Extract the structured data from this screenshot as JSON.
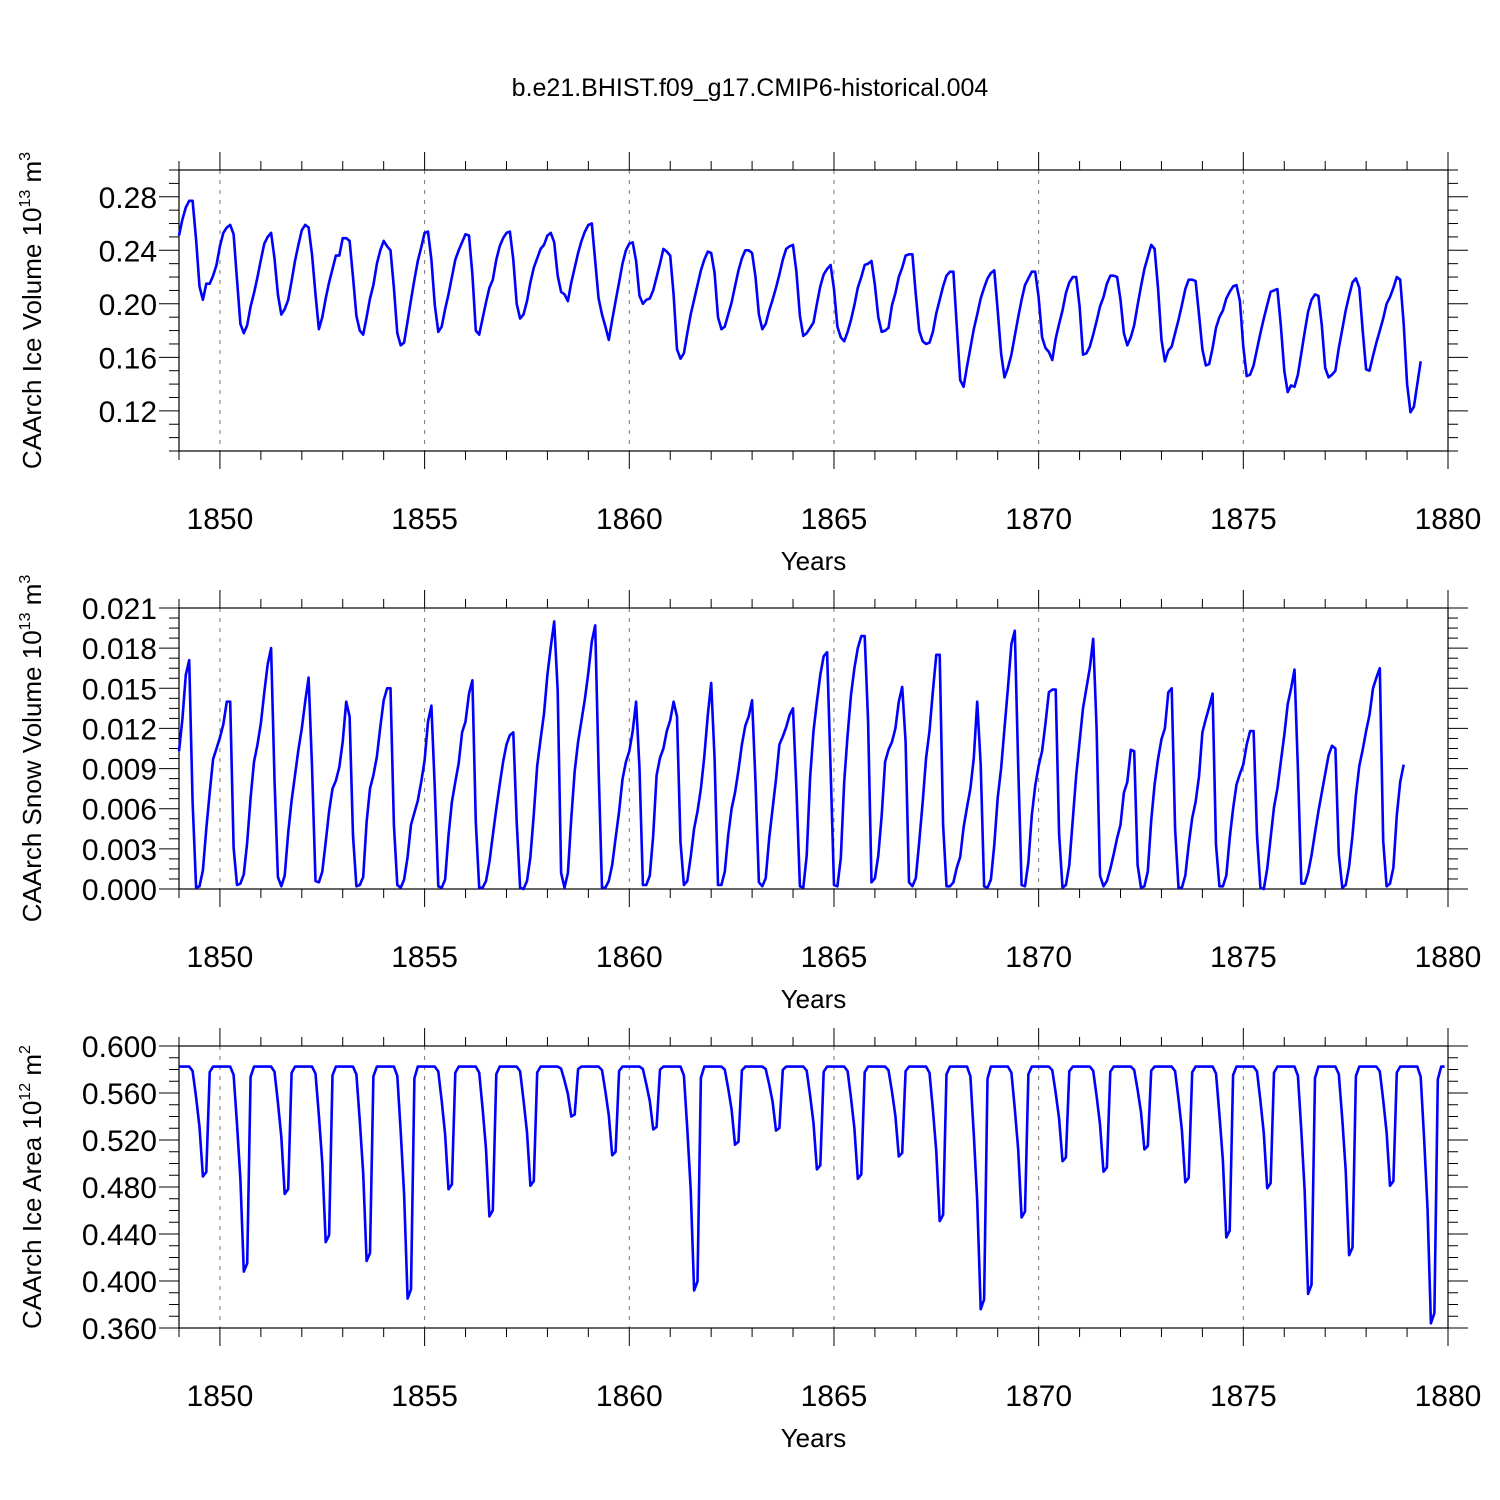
{
  "figure_title": "b.e21.BHIST.f09_g17.CMIP6-historical.004",
  "chart_data": [
    {
      "type": "line",
      "id": "ice-volume",
      "ylabel": "CAArch Ice Volume 10",
      "ylabel_exp": "13",
      "ylabel_unit": " m",
      "ylabel_unit_exp": "3",
      "xlabel": "Years",
      "xlim": [
        1849,
        1880
      ],
      "ylim": [
        0.09,
        0.3
      ],
      "yticks": [
        0.12,
        0.16,
        0.2,
        0.24,
        0.28
      ],
      "ytick_labels": [
        "0.12",
        "0.16",
        "0.20",
        "0.24",
        "0.28"
      ],
      "xticks": [
        1850,
        1855,
        1860,
        1865,
        1870,
        1875,
        1880
      ],
      "xtick_labels": [
        "1850",
        "1855",
        "1860",
        "1865",
        "1870",
        "1875",
        "1880"
      ],
      "series": [
        {
          "name": "CAArch Ice Volume",
          "color": "#0000ff",
          "monthly_values": [
            0.251,
            0.263,
            0.272,
            0.277,
            0.277,
            0.248,
            0.213,
            0.203,
            0.215,
            0.215,
            0.221,
            0.229,
            0.243,
            0.253,
            0.257,
            0.259,
            0.252,
            0.218,
            0.185,
            0.178,
            0.184,
            0.198,
            0.208,
            0.22,
            0.233,
            0.245,
            0.25,
            0.253,
            0.234,
            0.207,
            0.192,
            0.196,
            0.203,
            0.217,
            0.232,
            0.244,
            0.255,
            0.259,
            0.257,
            0.237,
            0.207,
            0.181,
            0.19,
            0.204,
            0.216,
            0.226,
            0.236,
            0.236,
            0.249,
            0.249,
            0.247,
            0.22,
            0.191,
            0.18,
            0.177,
            0.19,
            0.204,
            0.214,
            0.23,
            0.24,
            0.247,
            0.243,
            0.24,
            0.212,
            0.178,
            0.169,
            0.171,
            0.187,
            0.203,
            0.218,
            0.232,
            0.242,
            0.253,
            0.254,
            0.233,
            0.199,
            0.179,
            0.183,
            0.196,
            0.207,
            0.22,
            0.233,
            0.24,
            0.246,
            0.252,
            0.251,
            0.222,
            0.18,
            0.177,
            0.189,
            0.201,
            0.212,
            0.218,
            0.233,
            0.243,
            0.249,
            0.253,
            0.254,
            0.233,
            0.2,
            0.189,
            0.192,
            0.202,
            0.216,
            0.227,
            0.234,
            0.241,
            0.244,
            0.251,
            0.253,
            0.246,
            0.221,
            0.209,
            0.207,
            0.202,
            0.216,
            0.227,
            0.238,
            0.247,
            0.254,
            0.259,
            0.26,
            0.232,
            0.204,
            0.192,
            0.183,
            0.173,
            0.188,
            0.202,
            0.216,
            0.23,
            0.24,
            0.245,
            0.246,
            0.232,
            0.206,
            0.2,
            0.203,
            0.204,
            0.21,
            0.22,
            0.23,
            0.241,
            0.239,
            0.236,
            0.207,
            0.166,
            0.159,
            0.163,
            0.178,
            0.192,
            0.203,
            0.214,
            0.225,
            0.233,
            0.239,
            0.238,
            0.223,
            0.19,
            0.181,
            0.183,
            0.192,
            0.201,
            0.213,
            0.225,
            0.234,
            0.24,
            0.24,
            0.238,
            0.22,
            0.192,
            0.181,
            0.185,
            0.195,
            0.203,
            0.212,
            0.222,
            0.233,
            0.241,
            0.243,
            0.244,
            0.224,
            0.191,
            0.176,
            0.178,
            0.182,
            0.186,
            0.2,
            0.213,
            0.222,
            0.226,
            0.229,
            0.211,
            0.183,
            0.175,
            0.172,
            0.179,
            0.188,
            0.199,
            0.212,
            0.22,
            0.229,
            0.23,
            0.232,
            0.214,
            0.19,
            0.179,
            0.18,
            0.182,
            0.199,
            0.208,
            0.22,
            0.227,
            0.236,
            0.237,
            0.237,
            0.207,
            0.18,
            0.172,
            0.17,
            0.171,
            0.179,
            0.193,
            0.203,
            0.213,
            0.221,
            0.224,
            0.224,
            0.183,
            0.143,
            0.138,
            0.153,
            0.167,
            0.181,
            0.192,
            0.204,
            0.212,
            0.219,
            0.223,
            0.225,
            0.195,
            0.163,
            0.145,
            0.152,
            0.162,
            0.176,
            0.19,
            0.203,
            0.214,
            0.219,
            0.224,
            0.224,
            0.205,
            0.175,
            0.167,
            0.164,
            0.158,
            0.174,
            0.185,
            0.195,
            0.208,
            0.216,
            0.22,
            0.22,
            0.198,
            0.162,
            0.163,
            0.168,
            0.177,
            0.187,
            0.198,
            0.205,
            0.215,
            0.221,
            0.221,
            0.22,
            0.203,
            0.178,
            0.169,
            0.175,
            0.184,
            0.199,
            0.213,
            0.226,
            0.235,
            0.244,
            0.241,
            0.212,
            0.173,
            0.157,
            0.165,
            0.168,
            0.178,
            0.188,
            0.199,
            0.211,
            0.218,
            0.218,
            0.217,
            0.192,
            0.166,
            0.154,
            0.155,
            0.167,
            0.182,
            0.19,
            0.195,
            0.204,
            0.209,
            0.213,
            0.214,
            0.202,
            0.168,
            0.146,
            0.147,
            0.154,
            0.166,
            0.178,
            0.189,
            0.199,
            0.209,
            0.21,
            0.211,
            0.184,
            0.15,
            0.134,
            0.139,
            0.138,
            0.147,
            0.163,
            0.179,
            0.194,
            0.203,
            0.207,
            0.206,
            0.184,
            0.152,
            0.145,
            0.147,
            0.15,
            0.167,
            0.181,
            0.195,
            0.206,
            0.216,
            0.219,
            0.212,
            0.18,
            0.151,
            0.15,
            0.161,
            0.171,
            0.18,
            0.189,
            0.2,
            0.205,
            0.212,
            0.22,
            0.218,
            0.185,
            0.14,
            0.119,
            0.123,
            0.14,
            0.157
          ]
        }
      ]
    },
    {
      "type": "line",
      "id": "snow-volume",
      "ylabel": "CAArch Snow Volume 10",
      "ylabel_exp": "13",
      "ylabel_unit": " m",
      "ylabel_unit_exp": "3",
      "xlabel": "Years",
      "xlim": [
        1849,
        1880
      ],
      "ylim": [
        0.0,
        0.021
      ],
      "yticks": [
        0.0,
        0.003,
        0.006,
        0.009,
        0.012,
        0.015,
        0.018,
        0.021
      ],
      "ytick_labels": [
        "0.000",
        "0.003",
        "0.006",
        "0.009",
        "0.012",
        "0.015",
        "0.018",
        "0.021"
      ],
      "xticks": [
        1850,
        1855,
        1860,
        1865,
        1870,
        1875,
        1880
      ],
      "xtick_labels": [
        "1850",
        "1855",
        "1860",
        "1865",
        "1870",
        "1875",
        "1880"
      ],
      "series": [
        {
          "name": "CAArch Snow Volume",
          "color": "#0000ff",
          "monthly_values": [
            0.0103,
            0.0127,
            0.016,
            0.0171,
            0.0065,
            0.0001,
            0.0002,
            0.0014,
            0.0045,
            0.0072,
            0.0097,
            0.0105,
            0.0113,
            0.0123,
            0.014,
            0.014,
            0.0031,
            0.0003,
            0.0004,
            0.0011,
            0.0035,
            0.0068,
            0.0095,
            0.0108,
            0.0124,
            0.0147,
            0.0168,
            0.018,
            0.0082,
            0.0009,
            0.0002,
            0.001,
            0.0042,
            0.0066,
            0.0085,
            0.0104,
            0.012,
            0.014,
            0.0158,
            0.0092,
            0.0006,
            0.0005,
            0.0013,
            0.0035,
            0.0058,
            0.0075,
            0.0081,
            0.0091,
            0.011,
            0.014,
            0.0129,
            0.004,
            0.0002,
            0.0003,
            0.0009,
            0.005,
            0.0075,
            0.0085,
            0.0099,
            0.0121,
            0.0141,
            0.015,
            0.015,
            0.0048,
            0.0003,
            0.0001,
            0.0007,
            0.0024,
            0.0048,
            0.0057,
            0.0066,
            0.008,
            0.0096,
            0.0125,
            0.0137,
            0.0075,
            0.0002,
            0.0001,
            0.0007,
            0.004,
            0.0065,
            0.008,
            0.0094,
            0.0117,
            0.0125,
            0.0146,
            0.0156,
            0.005,
            0.0001,
            0.0001,
            0.0006,
            0.002,
            0.004,
            0.006,
            0.0078,
            0.0095,
            0.0108,
            0.0115,
            0.0117,
            0.005,
            0.0001,
            0.0,
            0.0006,
            0.0024,
            0.0056,
            0.0092,
            0.0112,
            0.0131,
            0.016,
            0.0181,
            0.02,
            0.0148,
            0.0012,
            0.0001,
            0.0012,
            0.0053,
            0.0088,
            0.011,
            0.0126,
            0.0142,
            0.0162,
            0.0185,
            0.0197,
            0.009,
            0.0001,
            0.0001,
            0.0006,
            0.0018,
            0.0038,
            0.0058,
            0.0082,
            0.0095,
            0.0103,
            0.0118,
            0.014,
            0.009,
            0.0003,
            0.0003,
            0.001,
            0.004,
            0.0085,
            0.0098,
            0.0105,
            0.0118,
            0.0126,
            0.014,
            0.0129,
            0.0035,
            0.0003,
            0.0006,
            0.0024,
            0.0045,
            0.0058,
            0.0075,
            0.0099,
            0.013,
            0.0154,
            0.0097,
            0.0003,
            0.0003,
            0.0013,
            0.004,
            0.006,
            0.0072,
            0.0089,
            0.0108,
            0.0122,
            0.0129,
            0.0141,
            0.008,
            0.0005,
            0.0002,
            0.0008,
            0.0038,
            0.006,
            0.0082,
            0.0108,
            0.0114,
            0.0121,
            0.013,
            0.0135,
            0.0075,
            0.0002,
            0.0001,
            0.0025,
            0.0083,
            0.0118,
            0.014,
            0.016,
            0.0174,
            0.0177,
            0.009,
            0.0003,
            0.0002,
            0.0023,
            0.008,
            0.0115,
            0.0145,
            0.0165,
            0.018,
            0.0189,
            0.0189,
            0.0125,
            0.0005,
            0.0008,
            0.0025,
            0.0055,
            0.0095,
            0.0104,
            0.011,
            0.012,
            0.014,
            0.0151,
            0.011,
            0.0005,
            0.0002,
            0.0008,
            0.0035,
            0.0065,
            0.0098,
            0.0118,
            0.0148,
            0.0175,
            0.0175,
            0.0048,
            0.0002,
            0.0002,
            0.0005,
            0.0016,
            0.0024,
            0.0046,
            0.0061,
            0.0075,
            0.0098,
            0.014,
            0.0093,
            0.0002,
            0.0001,
            0.0007,
            0.0033,
            0.0068,
            0.009,
            0.012,
            0.015,
            0.0183,
            0.0193,
            0.0092,
            0.0003,
            0.0002,
            0.002,
            0.0055,
            0.0077,
            0.0092,
            0.0103,
            0.0124,
            0.0147,
            0.0149,
            0.0149,
            0.0041,
            0.0001,
            0.0003,
            0.0018,
            0.0052,
            0.0085,
            0.011,
            0.0135,
            0.015,
            0.0165,
            0.0187,
            0.012,
            0.001,
            0.0002,
            0.0006,
            0.0015,
            0.0026,
            0.0038,
            0.0048,
            0.0072,
            0.008,
            0.0104,
            0.0103,
            0.0018,
            0.0001,
            0.0002,
            0.0013,
            0.0051,
            0.0078,
            0.0097,
            0.0112,
            0.012,
            0.0147,
            0.015,
            0.0045,
            0.0001,
            0.0001,
            0.001,
            0.0033,
            0.0053,
            0.0065,
            0.0084,
            0.0117,
            0.0127,
            0.0136,
            0.0146,
            0.0033,
            0.0002,
            0.0002,
            0.001,
            0.0038,
            0.006,
            0.0078,
            0.0086,
            0.0093,
            0.0108,
            0.0118,
            0.0118,
            0.004,
            0.0001,
            0.0,
            0.0015,
            0.0038,
            0.0061,
            0.0075,
            0.0095,
            0.0115,
            0.0138,
            0.015,
            0.0164,
            0.009,
            0.0004,
            0.0004,
            0.0012,
            0.0025,
            0.0042,
            0.0058,
            0.0072,
            0.0086,
            0.01,
            0.0107,
            0.0105,
            0.0026,
            0.0001,
            0.0003,
            0.0017,
            0.004,
            0.007,
            0.0092,
            0.0104,
            0.0118,
            0.013,
            0.015,
            0.0158,
            0.0165,
            0.0036,
            0.0002,
            0.0004,
            0.0016,
            0.0055,
            0.008,
            0.0093
          ]
        }
      ]
    },
    {
      "type": "line",
      "id": "ice-area",
      "ylabel": "CAArch Ice Area 10",
      "ylabel_exp": "12",
      "ylabel_unit": " m",
      "ylabel_unit_exp": "2",
      "xlabel": "Years",
      "xlim": [
        1849,
        1880
      ],
      "ylim": [
        0.36,
        0.6
      ],
      "yticks": [
        0.36,
        0.4,
        0.44,
        0.48,
        0.52,
        0.56,
        0.6
      ],
      "ytick_labels": [
        "0.360",
        "0.400",
        "0.440",
        "0.480",
        "0.520",
        "0.560",
        "0.600"
      ],
      "xticks": [
        1850,
        1855,
        1860,
        1865,
        1870,
        1875,
        1880
      ],
      "xtick_labels": [
        "1850",
        "1855",
        "1860",
        "1865",
        "1870",
        "1875",
        "1880"
      ],
      "series": [
        {
          "name": "CAArch Ice Area",
          "color": "#0000ff",
          "annual_pattern_unit": "years",
          "peak_value": 0.5825,
          "annual_minima": [
            0.489,
            0.408,
            0.474,
            0.433,
            0.417,
            0.385,
            0.478,
            0.455,
            0.481,
            0.54,
            0.507,
            0.529,
            0.392,
            0.516,
            0.528,
            0.495,
            0.487,
            0.506,
            0.451,
            0.376,
            0.454,
            0.502,
            0.493,
            0.512,
            0.484,
            0.437,
            0.479,
            0.389,
            0.422,
            0.481,
            0.364
          ]
        }
      ]
    }
  ]
}
